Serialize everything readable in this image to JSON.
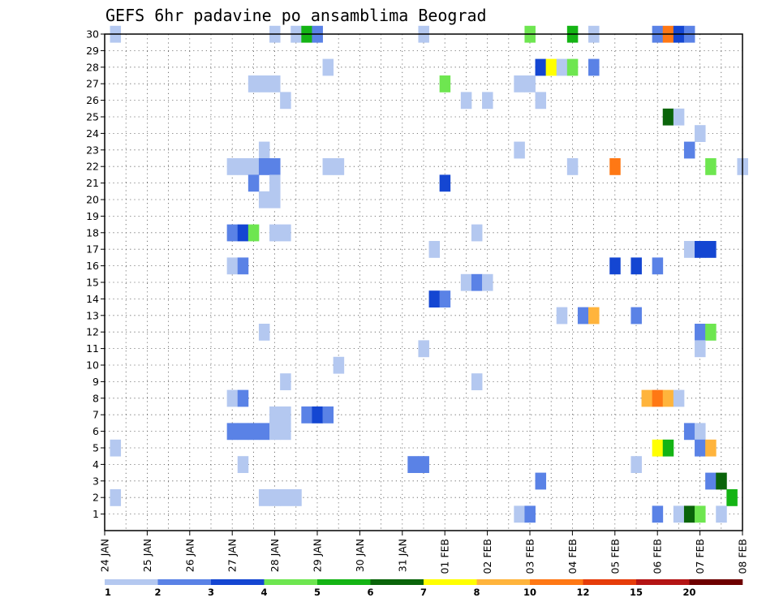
{
  "chart_data": {
    "type": "heatmap",
    "title": "GEFS 6hr padavine po ansamblima Beograd",
    "xlabel": "",
    "ylabel": "",
    "x_tick_labels": [
      "24 JAN",
      "25 JAN",
      "26 JAN",
      "27 JAN",
      "28 JAN",
      "29 JAN",
      "30 JAN",
      "31 JAN",
      "01 FEB",
      "02 FEB",
      "03 FEB",
      "04 FEB",
      "05 FEB",
      "06 FEB",
      "07 FEB",
      "08 FEB"
    ],
    "y_tick_labels": [
      "1",
      "2",
      "3",
      "4",
      "5",
      "6",
      "7",
      "8",
      "9",
      "10",
      "11",
      "12",
      "13",
      "14",
      "15",
      "16",
      "17",
      "18",
      "19",
      "20",
      "21",
      "22",
      "23",
      "24",
      "25",
      "26",
      "27",
      "28",
      "29",
      "30"
    ],
    "x_unit": "6-hour step from 24 JAN 00Z (4 steps per day)",
    "xlim": [
      0,
      60
    ],
    "ylim": [
      0,
      30
    ],
    "grid": true,
    "colorbar_labels": [
      "1",
      "2",
      "3",
      "4",
      "5",
      "6",
      "7",
      "8",
      "10",
      "12",
      "15",
      "20"
    ],
    "colorbar_colors": [
      "#b4c8f0",
      "#5a82e6",
      "#1446d2",
      "#6ee650",
      "#14b414",
      "#0a640a",
      "#ffff00",
      "#ffb43c",
      "#ff7814",
      "#e63c0a",
      "#b41414",
      "#6e0000"
    ],
    "cells": [
      [
        1,
        30,
        1
      ],
      [
        16,
        30,
        1
      ],
      [
        18,
        30,
        1
      ],
      [
        19,
        30,
        5
      ],
      [
        20,
        30,
        2
      ],
      [
        30,
        30,
        1
      ],
      [
        40,
        30,
        4
      ],
      [
        44,
        30,
        5
      ],
      [
        46,
        30,
        1
      ],
      [
        52,
        30,
        2
      ],
      [
        53,
        30,
        9
      ],
      [
        54,
        30,
        3
      ],
      [
        55,
        30,
        2
      ],
      [
        21,
        28,
        1
      ],
      [
        41,
        28,
        3
      ],
      [
        42,
        28,
        7
      ],
      [
        43,
        28,
        1
      ],
      [
        44,
        28,
        4
      ],
      [
        46,
        28,
        2
      ],
      [
        14,
        27,
        1
      ],
      [
        15,
        27,
        1
      ],
      [
        16,
        27,
        1
      ],
      [
        32,
        27,
        4
      ],
      [
        39,
        27,
        1
      ],
      [
        40,
        27,
        1
      ],
      [
        17,
        26,
        1
      ],
      [
        34,
        26,
        1
      ],
      [
        36,
        26,
        1
      ],
      [
        41,
        26,
        1
      ],
      [
        53,
        25,
        6
      ],
      [
        54,
        25,
        1
      ],
      [
        56,
        24,
        1
      ],
      [
        15,
        23,
        1
      ],
      [
        39,
        23,
        1
      ],
      [
        55,
        23,
        2
      ],
      [
        12,
        22,
        1
      ],
      [
        13,
        22,
        1
      ],
      [
        14,
        22,
        1
      ],
      [
        15,
        22,
        2
      ],
      [
        16,
        22,
        2
      ],
      [
        21,
        22,
        1
      ],
      [
        22,
        22,
        1
      ],
      [
        44,
        22,
        1
      ],
      [
        48,
        22,
        9
      ],
      [
        57,
        22,
        4
      ],
      [
        60,
        22,
        1
      ],
      [
        14,
        21,
        2
      ],
      [
        16,
        21,
        1
      ],
      [
        32,
        21,
        3
      ],
      [
        15,
        20,
        1
      ],
      [
        16,
        20,
        1
      ],
      [
        12,
        18,
        2
      ],
      [
        13,
        18,
        3
      ],
      [
        14,
        18,
        4
      ],
      [
        16,
        18,
        1
      ],
      [
        17,
        18,
        1
      ],
      [
        35,
        18,
        1
      ],
      [
        31,
        17,
        1
      ],
      [
        55,
        17,
        1
      ],
      [
        56,
        17,
        3
      ],
      [
        57,
        17,
        3
      ],
      [
        12,
        16,
        1
      ],
      [
        13,
        16,
        2
      ],
      [
        48,
        16,
        3
      ],
      [
        50,
        16,
        3
      ],
      [
        52,
        16,
        2
      ],
      [
        34,
        15,
        1
      ],
      [
        35,
        15,
        2
      ],
      [
        36,
        15,
        1
      ],
      [
        31,
        14,
        3
      ],
      [
        32,
        14,
        2
      ],
      [
        43,
        13,
        1
      ],
      [
        45,
        13,
        2
      ],
      [
        46,
        13,
        8
      ],
      [
        50,
        13,
        2
      ],
      [
        15,
        12,
        1
      ],
      [
        56,
        12,
        2
      ],
      [
        57,
        12,
        4
      ],
      [
        30,
        11,
        1
      ],
      [
        56,
        11,
        1
      ],
      [
        22,
        10,
        1
      ],
      [
        17,
        9,
        1
      ],
      [
        35,
        9,
        1
      ],
      [
        12,
        8,
        1
      ],
      [
        13,
        8,
        2
      ],
      [
        51,
        8,
        8
      ],
      [
        52,
        8,
        9
      ],
      [
        53,
        8,
        8
      ],
      [
        54,
        8,
        1
      ],
      [
        16,
        7,
        1
      ],
      [
        17,
        7,
        1
      ],
      [
        19,
        7,
        2
      ],
      [
        20,
        7,
        3
      ],
      [
        21,
        7,
        2
      ],
      [
        12,
        6,
        2
      ],
      [
        13,
        6,
        2
      ],
      [
        14,
        6,
        2
      ],
      [
        15,
        6,
        2
      ],
      [
        16,
        6,
        1
      ],
      [
        17,
        6,
        1
      ],
      [
        55,
        6,
        2
      ],
      [
        56,
        6,
        1
      ],
      [
        1,
        5,
        1
      ],
      [
        52,
        5,
        7
      ],
      [
        53,
        5,
        5
      ],
      [
        56,
        5,
        2
      ],
      [
        57,
        5,
        8
      ],
      [
        13,
        4,
        1
      ],
      [
        29,
        4,
        2
      ],
      [
        30,
        4,
        2
      ],
      [
        50,
        4,
        1
      ],
      [
        41,
        3,
        2
      ],
      [
        57,
        3,
        2
      ],
      [
        58,
        3,
        6
      ],
      [
        1,
        2,
        1
      ],
      [
        15,
        2,
        1
      ],
      [
        16,
        2,
        1
      ],
      [
        17,
        2,
        1
      ],
      [
        18,
        2,
        1
      ],
      [
        59,
        2,
        5
      ],
      [
        39,
        1,
        1
      ],
      [
        40,
        1,
        2
      ],
      [
        52,
        1,
        2
      ],
      [
        54,
        1,
        1
      ],
      [
        55,
        1,
        6
      ],
      [
        56,
        1,
        4
      ],
      [
        58,
        1,
        1
      ]
    ]
  }
}
